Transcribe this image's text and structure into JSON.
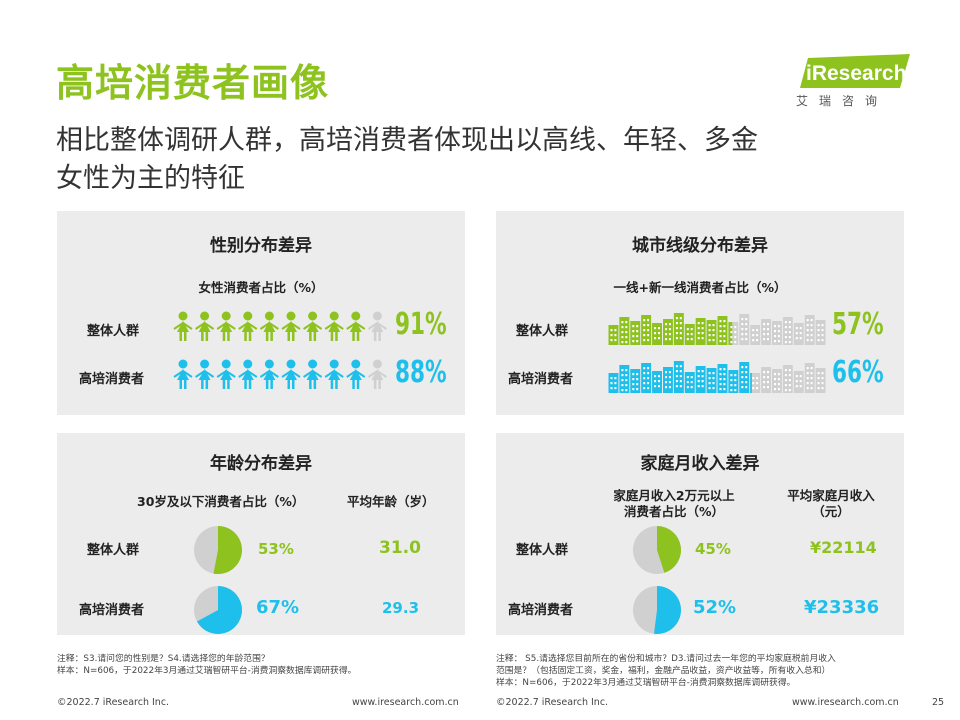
{
  "header": {
    "title": "高培消费者画像",
    "subtitle_lines": [
      "相比整体调研人群，高培消费者体现出以高线、年轻、多金",
      "女性为主的特征"
    ],
    "logo_text": "iResearch",
    "logo_cn": "艾瑞咨询"
  },
  "colors": {
    "green": "#8dc21f",
    "blue": "#1ec0eb",
    "grey": "#d0d0d0",
    "panel": "#ececec"
  },
  "labels": {
    "overall": "整体人群",
    "premium": "高培消费者"
  },
  "gender": {
    "title": "性别分布差异",
    "subtitle": "女性消费者占比（%）",
    "overall_pct": "91%",
    "premium_pct": "88%",
    "overall_fill": 0.91,
    "premium_fill": 0.88,
    "icon": "female-person-icon"
  },
  "city": {
    "title": "城市线级分布差异",
    "subtitle": "一线+新一线消费者占比（%）",
    "overall_pct": "57%",
    "premium_pct": "66%",
    "overall_fill": 0.57,
    "premium_fill": 0.66,
    "icon": "city-skyline-icon"
  },
  "age": {
    "title": "年龄分布差异",
    "sub_share": "30岁及以下消费者占比（%）",
    "sub_avg": "平均年龄（岁）",
    "overall_pct": "53%",
    "premium_pct": "67%",
    "overall_fill": 0.53,
    "premium_fill": 0.67,
    "overall_avg": "31.0",
    "premium_avg": "29.3"
  },
  "income": {
    "title": "家庭月收入差异",
    "sub_share": [
      "家庭月收入2万元以上",
      "消费者占比（%）"
    ],
    "sub_avg": [
      "平均家庭月收入",
      "（元）"
    ],
    "overall_pct": "45%",
    "premium_pct": "52%",
    "overall_fill": 0.45,
    "premium_fill": 0.52,
    "overall_avg": "¥22114",
    "premium_avg": "¥23336"
  },
  "notes": {
    "left": [
      "注释：S3.请问您的性别是？S4.请选择您的年龄范围？",
      "样本：N=606，于2022年3月通过艾瑞智研平台-消费洞察数据库调研获得。"
    ],
    "right": [
      "注释： S5.请选择您目前所在的省份和城市？D3.请问过去一年您的平均家庭税前月收入",
      "范围是？（包括固定工资，奖金，福利，金融产品收益，资产收益等，所有收入总和）",
      "样本：N=606，于2022年3月通过艾瑞智研平台-消费洞察数据库调研获得。"
    ]
  },
  "footer": {
    "copyright_left": "©2022.7 iResearch Inc.",
    "url_left": "www.iresearch.com.cn",
    "copyright_right": "©2022.7 iResearch Inc.",
    "url_right": "www.iresearch.com.cn",
    "page_number": "25"
  }
}
